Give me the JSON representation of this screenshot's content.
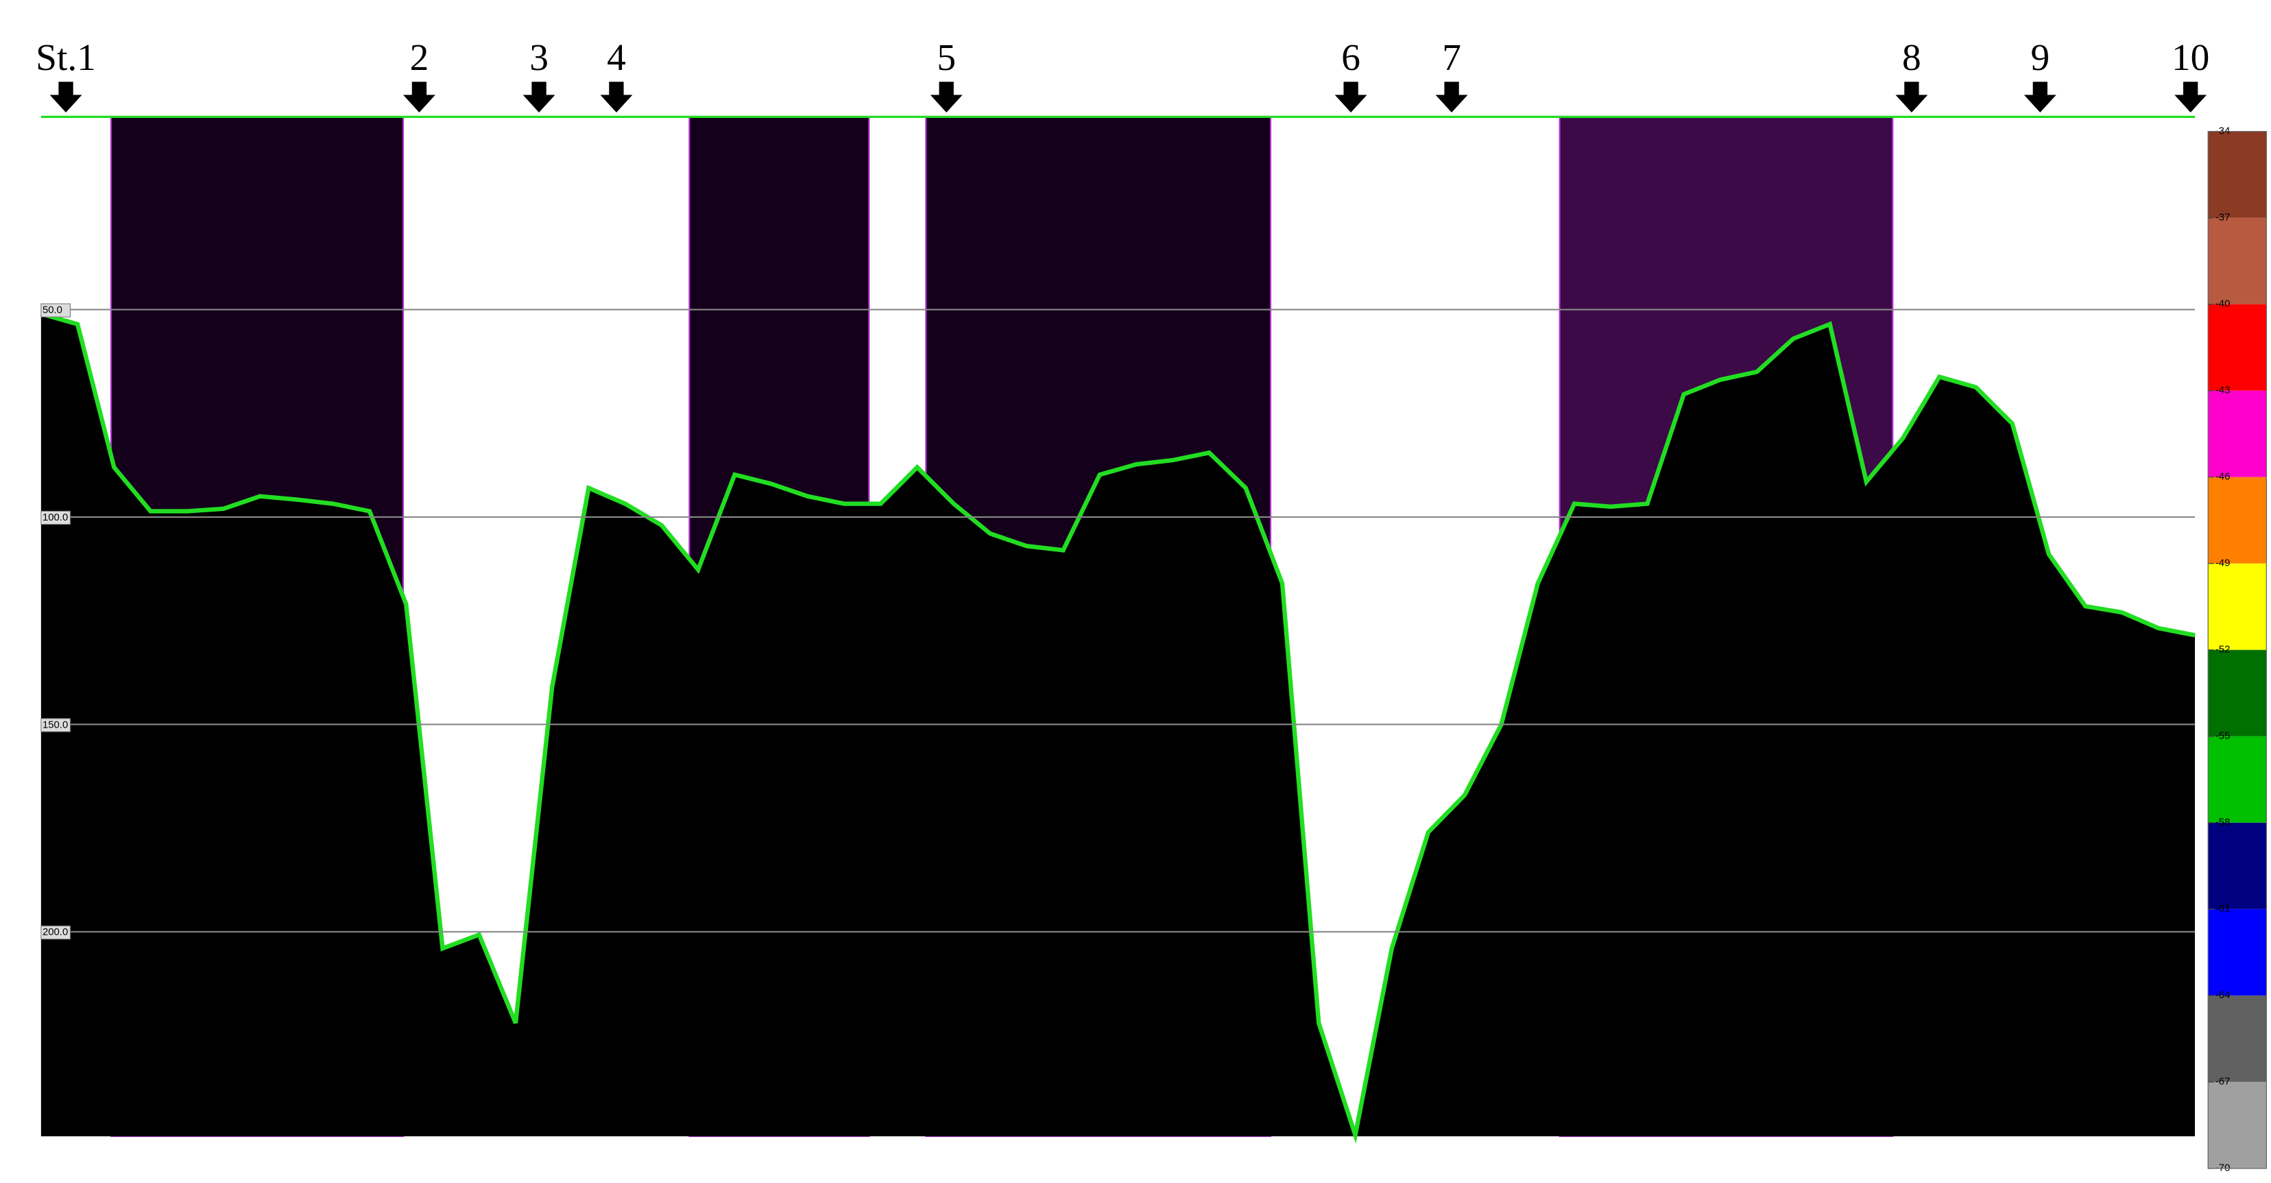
{
  "chart_data": {
    "type": "echogram",
    "stations": [
      "St.1",
      "2",
      "3",
      "4",
      "5",
      "6",
      "7",
      "8",
      "9",
      "10"
    ],
    "ylim": [
      0,
      250
    ],
    "yticks": [
      {
        "value": 50,
        "label": "50.0"
      },
      {
        "value": 100,
        "label": "100.0"
      },
      {
        "value": 150,
        "label": "150.0"
      },
      {
        "value": 200,
        "label": "200.0"
      }
    ],
    "grid": true,
    "bottom_color": "#000000",
    "bottom_line_color": "#22dd22",
    "bottom_depth": [
      51,
      53.5,
      88,
      98.6,
      98.6,
      98,
      95,
      95.8,
      96.8,
      98.6,
      121,
      204,
      200.7,
      222,
      141,
      93,
      96.8,
      102,
      112.7,
      89.8,
      92,
      95,
      96.8,
      96.8,
      88,
      96.8,
      104,
      107,
      108,
      89.8,
      87.3,
      86.3,
      84.5,
      93,
      116,
      222,
      249,
      204,
      176,
      167,
      150,
      116,
      96.8,
      97.5,
      96.8,
      70.4,
      66.9,
      65,
      57,
      53.5,
      91.5,
      81,
      66.2,
      68.7,
      77.5,
      109,
      121.5,
      123,
      126.8,
      128.5
    ],
    "colorbar": {
      "lim": [
        -34,
        -70
      ],
      "ticks": [
        -34,
        -37,
        -40,
        -43,
        -46,
        -49,
        -52,
        -55,
        -58,
        -61,
        -64,
        -67,
        -70
      ],
      "colors": [
        "#8b3a24",
        "#b85a40",
        "#ff0000",
        "#ff00cc",
        "#ff8000",
        "#ffff00",
        "#007000",
        "#00c000",
        "#000080",
        "#0000ff",
        "#606060",
        "#a0a0a0"
      ]
    }
  }
}
